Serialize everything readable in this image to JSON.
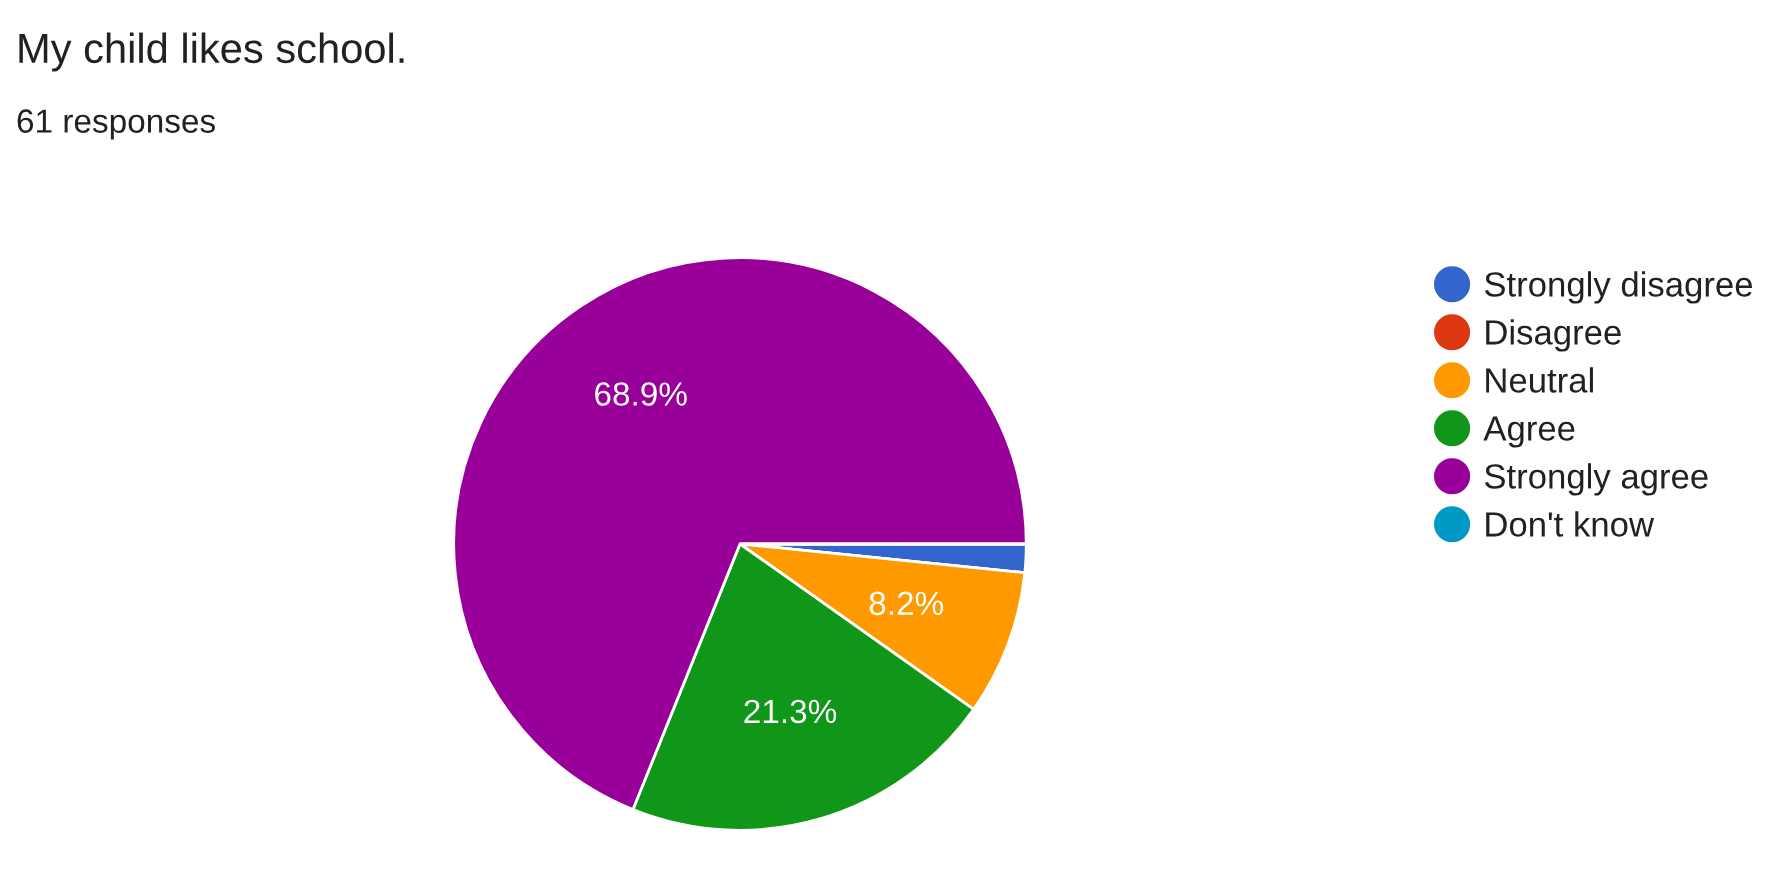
{
  "chart_data": {
    "type": "pie",
    "title": "My child likes school.",
    "subtitle": "61 responses",
    "categories": [
      "Strongly disagree",
      "Disagree",
      "Neutral",
      "Agree",
      "Strongly agree",
      "Don't know"
    ],
    "values": [
      1.6,
      0,
      8.2,
      21.3,
      68.9,
      0
    ],
    "colors": [
      "#3366cc",
      "#dc3912",
      "#ff9900",
      "#109618",
      "#990099",
      "#0099c6"
    ],
    "value_labels": [
      null,
      null,
      "8.2%",
      "21.3%",
      "68.9%",
      null
    ],
    "legend": "right"
  }
}
